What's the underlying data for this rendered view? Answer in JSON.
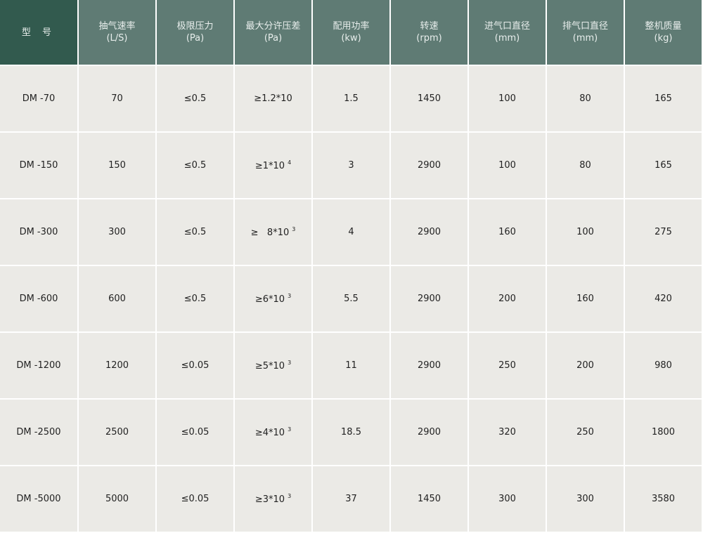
{
  "headers": [
    {
      "title": "型 号",
      "unit": ""
    },
    {
      "title": "抽气速率",
      "unit": "(L/S)"
    },
    {
      "title": "极限压力",
      "unit": "(Pa)"
    },
    {
      "title": "最大分许压差",
      "unit": "(Pa)"
    },
    {
      "title": "配用功率",
      "unit": "(kw)"
    },
    {
      "title": "转速",
      "unit": "(rpm)"
    },
    {
      "title": "进气口直径",
      "unit": "(mm)"
    },
    {
      "title": "排气口直径",
      "unit": "(mm)"
    },
    {
      "title": "整机质量",
      "unit": "(kg)"
    }
  ],
  "rows": [
    {
      "model": "DM -70",
      "speed": "70",
      "pressure": "≤0.5",
      "diff": "≥1.2*10",
      "diff_exp": "",
      "power": "1.5",
      "rpm": "1450",
      "inlet": "100",
      "outlet": "80",
      "mass": "165"
    },
    {
      "model": "DM -150",
      "speed": "150",
      "pressure": "≤0.5",
      "diff": "≥1*10",
      "diff_exp": "4",
      "power": "3",
      "rpm": "2900",
      "inlet": "100",
      "outlet": "80",
      "mass": "165"
    },
    {
      "model": "DM -300",
      "speed": "300",
      "pressure": "≤0.5",
      "diff": "≥   8*10",
      "diff_exp": "3",
      "power": "4",
      "rpm": "2900",
      "inlet": "160",
      "outlet": "100",
      "mass": "275"
    },
    {
      "model": "DM -600",
      "speed": "600",
      "pressure": "≤0.5",
      "diff": "≥6*10",
      "diff_exp": "3",
      "power": "5.5",
      "rpm": "2900",
      "inlet": "200",
      "outlet": "160",
      "mass": "420"
    },
    {
      "model": "DM -1200",
      "speed": "1200",
      "pressure": "≤0.05",
      "diff": "≥5*10",
      "diff_exp": "3",
      "power": "11",
      "rpm": "2900",
      "inlet": "250",
      "outlet": "200",
      "mass": "980"
    },
    {
      "model": "DM -2500",
      "speed": "2500",
      "pressure": "≤0.05",
      "diff": "≥4*10",
      "diff_exp": "3",
      "power": "18.5",
      "rpm": "2900",
      "inlet": "320",
      "outlet": "250",
      "mass": "1800"
    },
    {
      "model": "DM -5000",
      "speed": "5000",
      "pressure": "≤0.05",
      "diff": "≥3*10",
      "diff_exp": "3",
      "power": "37",
      "rpm": "1450",
      "inlet": "300",
      "outlet": "300",
      "mass": "3580"
    }
  ]
}
